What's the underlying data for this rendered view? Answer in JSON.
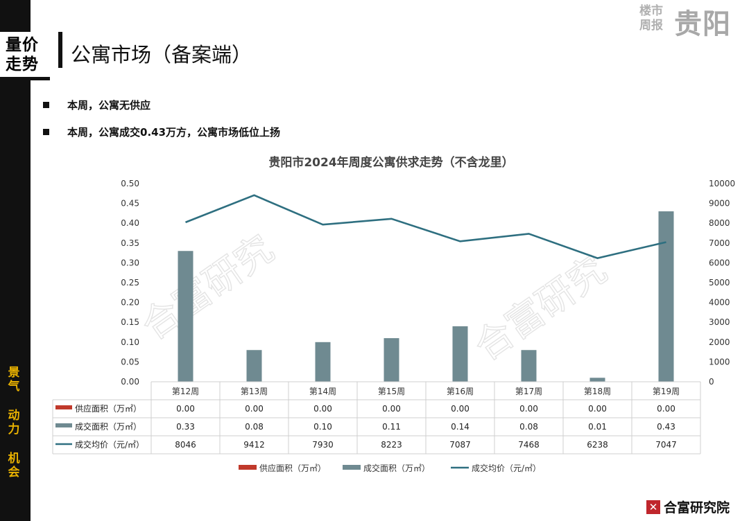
{
  "header": {
    "tag_line1": "量价",
    "tag_line2": "走势",
    "title": "公寓市场（备案端）",
    "brand_small_1": "楼市",
    "brand_small_2": "周报",
    "brand_big": "贵阳"
  },
  "sidebar": {
    "words": [
      "景气",
      "动力",
      "机会"
    ],
    "accent_color": "#e8b100"
  },
  "bullets": [
    "本周，公寓无供应",
    "本周，公寓成交0.43万方，公寓市场低位上扬"
  ],
  "footer": {
    "logo_text": "合富研究院",
    "logo_mark": "✕"
  },
  "watermark": "合富研究",
  "chart_data": {
    "type": "bar",
    "title": "贵阳市2024年周度公寓供求走势（不含龙里）",
    "categories": [
      "第12周",
      "第13周",
      "第14周",
      "第15周",
      "第16周",
      "第17周",
      "第18周",
      "第19周"
    ],
    "ylim_left": [
      0,
      0.5
    ],
    "yticks_left": [
      "0.00",
      "0.05",
      "0.10",
      "0.15",
      "0.20",
      "0.25",
      "0.30",
      "0.35",
      "0.40",
      "0.45",
      "0.50"
    ],
    "ylim_right": [
      0,
      10000
    ],
    "yticks_right": [
      "0",
      "1000",
      "2000",
      "3000",
      "4000",
      "5000",
      "6000",
      "7000",
      "8000",
      "9000",
      "10000"
    ],
    "series": [
      {
        "name": "供应面积（万㎡）",
        "kind": "bar",
        "axis": "left",
        "color": "#c0392b",
        "values": [
          0.0,
          0.0,
          0.0,
          0.0,
          0.0,
          0.0,
          0.0,
          0.0
        ],
        "labels": [
          "0.00",
          "0.00",
          "0.00",
          "0.00",
          "0.00",
          "0.00",
          "0.00",
          "0.00"
        ]
      },
      {
        "name": "成交面积（万㎡）",
        "kind": "bar",
        "axis": "left",
        "color": "#6f8a91",
        "values": [
          0.33,
          0.08,
          0.1,
          0.11,
          0.14,
          0.08,
          0.01,
          0.43
        ],
        "labels": [
          "0.33",
          "0.08",
          "0.10",
          "0.11",
          "0.14",
          "0.08",
          "0.01",
          "0.43"
        ]
      },
      {
        "name": "成交均价（元/㎡）",
        "kind": "line",
        "axis": "right",
        "color": "#2e6f80",
        "values": [
          8046,
          9412,
          7930,
          8223,
          7087,
          7468,
          6238,
          7047
        ],
        "labels": [
          "8046",
          "9412",
          "7930",
          "8223",
          "7087",
          "7468",
          "6238",
          "7047"
        ]
      }
    ],
    "legend_position": "bottom",
    "grid": false
  }
}
